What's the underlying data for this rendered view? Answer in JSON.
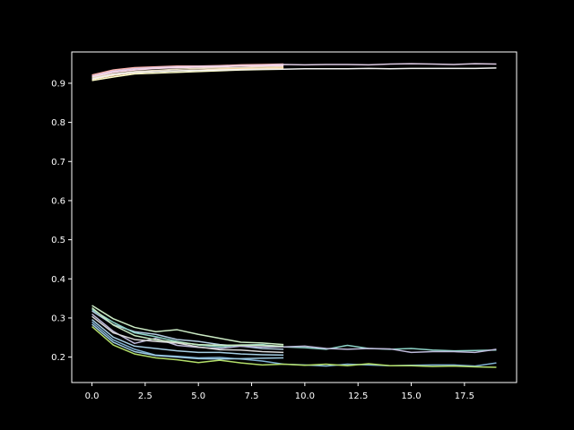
{
  "chart_data": {
    "type": "line",
    "title": "",
    "xlabel": "",
    "ylabel": "",
    "xlim": [
      -0.95,
      19.95
    ],
    "ylim": [
      0.135,
      0.98
    ],
    "xticks": [
      0.0,
      2.5,
      5.0,
      7.5,
      10.0,
      12.5,
      15.0,
      17.5
    ],
    "xtick_labels": [
      "0.0",
      "2.5",
      "5.0",
      "7.5",
      "10.0",
      "12.5",
      "15.0",
      "17.5"
    ],
    "yticks": [
      0.2,
      0.3,
      0.4,
      0.5,
      0.6,
      0.7,
      0.8,
      0.9
    ],
    "ytick_labels": [
      "0.2",
      "0.3",
      "0.4",
      "0.5",
      "0.6",
      "0.7",
      "0.8",
      "0.9"
    ],
    "grid": false,
    "background": "#000000",
    "axis_color": "#ffffff",
    "series": [
      {
        "color": "#fbb4ae",
        "x": [
          0,
          1,
          2,
          3,
          4,
          5,
          6,
          7,
          8,
          9
        ],
        "y": [
          0.921,
          0.934,
          0.94,
          0.942,
          0.944,
          0.944,
          0.945,
          0.947,
          0.948,
          0.949
        ]
      },
      {
        "color": "#decbe4",
        "x": [
          0,
          1,
          2,
          3,
          4,
          5,
          6,
          7,
          8,
          9,
          10,
          11,
          12,
          13,
          14,
          15,
          16,
          17,
          18,
          19
        ],
        "y": [
          0.918,
          0.931,
          0.937,
          0.94,
          0.942,
          0.943,
          0.944,
          0.945,
          0.946,
          0.948,
          0.947,
          0.948,
          0.948,
          0.947,
          0.949,
          0.95,
          0.949,
          0.948,
          0.95,
          0.949
        ]
      },
      {
        "color": "#fddaec",
        "x": [
          0,
          1,
          2,
          3,
          4,
          5,
          6,
          7,
          8,
          9
        ],
        "y": [
          0.916,
          0.928,
          0.934,
          0.938,
          0.94,
          0.941,
          0.942,
          0.944,
          0.944,
          0.945
        ]
      },
      {
        "color": "#e5d8bd",
        "x": [
          0,
          1,
          2,
          3,
          4,
          5,
          6,
          7,
          8,
          9
        ],
        "y": [
          0.914,
          0.924,
          0.93,
          0.933,
          0.936,
          0.938,
          0.939,
          0.94,
          0.941,
          0.942
        ]
      },
      {
        "color": "#ffffcc",
        "x": [
          0,
          1,
          2,
          3,
          4,
          5,
          6,
          7,
          8,
          9
        ],
        "y": [
          0.907,
          0.916,
          0.924,
          0.926,
          0.928,
          0.93,
          0.932,
          0.934,
          0.935,
          0.936
        ]
      },
      {
        "color": "#fed9a6",
        "x": [
          0,
          1,
          2,
          3,
          4,
          5,
          6,
          7,
          8,
          9
        ],
        "y": [
          0.91,
          0.92,
          0.927,
          0.93,
          0.932,
          0.934,
          0.936,
          0.937,
          0.938,
          0.939
        ]
      },
      {
        "color": "#f2f2f2",
        "x": [
          0,
          1,
          2,
          3,
          4,
          5,
          6,
          7,
          8,
          9,
          10,
          11,
          12,
          13,
          14,
          15,
          16,
          17,
          18,
          19
        ],
        "y": [
          0.911,
          0.922,
          0.928,
          0.93,
          0.932,
          0.933,
          0.934,
          0.935,
          0.936,
          0.936,
          0.937,
          0.937,
          0.937,
          0.938,
          0.937,
          0.938,
          0.938,
          0.938,
          0.938,
          0.939
        ]
      },
      {
        "color": "#ccebc5",
        "x": [
          0,
          1,
          2,
          3,
          4,
          5,
          6,
          7,
          8,
          9
        ],
        "y": [
          0.332,
          0.298,
          0.276,
          0.265,
          0.27,
          0.258,
          0.248,
          0.238,
          0.236,
          0.232
        ]
      },
      {
        "color": "#b3cde3",
        "x": [
          0,
          1,
          2,
          3,
          4,
          5,
          6,
          7,
          8,
          9
        ],
        "y": [
          0.318,
          0.283,
          0.265,
          0.258,
          0.245,
          0.24,
          0.232,
          0.228,
          0.222,
          0.22
        ]
      },
      {
        "color": "#8dd3c7",
        "x": [
          0,
          1,
          2,
          3,
          4,
          5,
          6,
          7,
          8,
          9,
          10,
          11,
          12,
          13,
          14,
          15,
          16,
          17,
          18,
          19
        ],
        "y": [
          0.322,
          0.289,
          0.262,
          0.252,
          0.24,
          0.231,
          0.226,
          0.231,
          0.232,
          0.226,
          0.224,
          0.22,
          0.23,
          0.222,
          0.22,
          0.222,
          0.218,
          0.216,
          0.217,
          0.218
        ]
      },
      {
        "color": "#bebada",
        "x": [
          0,
          1,
          2,
          3,
          4,
          5,
          6,
          7,
          8,
          9,
          10,
          11,
          12,
          13,
          14,
          15,
          16,
          17,
          18,
          19
        ],
        "y": [
          0.31,
          0.266,
          0.235,
          0.248,
          0.23,
          0.225,
          0.222,
          0.228,
          0.226,
          0.226,
          0.228,
          0.222,
          0.22,
          0.222,
          0.221,
          0.212,
          0.214,
          0.214,
          0.212,
          0.22
        ]
      },
      {
        "color": "#80b1d3",
        "x": [
          0,
          1,
          2,
          3,
          4,
          5,
          6,
          7,
          8,
          9,
          10,
          11,
          12,
          13,
          14,
          15,
          16,
          17,
          18,
          19
        ],
        "y": [
          0.29,
          0.244,
          0.22,
          0.205,
          0.202,
          0.198,
          0.199,
          0.195,
          0.19,
          0.182,
          0.18,
          0.177,
          0.182,
          0.18,
          0.178,
          0.179,
          0.18,
          0.18,
          0.177,
          0.185
        ]
      },
      {
        "color": "#b3de69",
        "x": [
          0,
          1,
          2,
          3,
          4,
          5,
          6,
          7,
          8,
          9,
          10,
          11,
          12,
          13,
          14,
          15,
          16,
          17,
          18,
          19
        ],
        "y": [
          0.278,
          0.231,
          0.208,
          0.198,
          0.193,
          0.186,
          0.192,
          0.185,
          0.18,
          0.182,
          0.179,
          0.182,
          0.178,
          0.183,
          0.178,
          0.178,
          0.176,
          0.177,
          0.175,
          0.174
        ]
      },
      {
        "color": "#a6cee3",
        "x": [
          0,
          1,
          2,
          3,
          4,
          5,
          6,
          7,
          8,
          9
        ],
        "y": [
          0.296,
          0.251,
          0.228,
          0.222,
          0.216,
          0.212,
          0.212,
          0.208,
          0.206,
          0.205
        ]
      },
      {
        "color": "#9ecae1",
        "x": [
          0,
          1,
          2,
          3,
          4,
          5,
          6,
          7,
          8,
          9
        ],
        "y": [
          0.284,
          0.238,
          0.214,
          0.204,
          0.2,
          0.196,
          0.195,
          0.196,
          0.197,
          0.198
        ]
      },
      {
        "color": "#c7e9c0",
        "x": [
          0,
          1,
          2,
          3,
          4,
          5,
          6,
          7,
          8,
          9
        ],
        "y": [
          0.326,
          0.282,
          0.255,
          0.244,
          0.238,
          0.232,
          0.23,
          0.231,
          0.23,
          0.228
        ]
      },
      {
        "color": "#d9d9d9",
        "x": [
          0,
          1,
          2,
          3,
          4,
          5,
          6,
          7,
          8,
          9
        ],
        "y": [
          0.304,
          0.262,
          0.245,
          0.24,
          0.236,
          0.226,
          0.219,
          0.218,
          0.214,
          0.212
        ]
      }
    ]
  }
}
